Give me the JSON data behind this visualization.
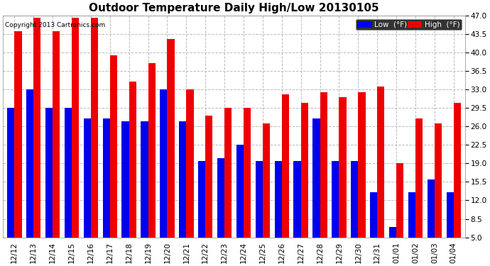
{
  "title": "Outdoor Temperature Daily High/Low 20130105",
  "copyright": "Copyright 2013 Cartronics.com",
  "legend_low": "Low  (°F)",
  "legend_high": "High  (°F)",
  "dates": [
    "12/12",
    "12/13",
    "12/14",
    "12/15",
    "12/16",
    "12/17",
    "12/18",
    "12/19",
    "12/20",
    "12/21",
    "12/22",
    "12/23",
    "12/24",
    "12/25",
    "12/26",
    "12/27",
    "12/28",
    "12/29",
    "12/30",
    "12/31",
    "01/01",
    "01/02",
    "01/03",
    "01/04"
  ],
  "low_values": [
    29.5,
    33.0,
    29.5,
    29.5,
    27.5,
    27.5,
    27.0,
    27.0,
    33.0,
    27.0,
    19.5,
    20.0,
    22.5,
    19.5,
    19.5,
    19.5,
    27.5,
    19.5,
    19.5,
    13.5,
    7.0,
    13.5,
    16.0,
    13.5
  ],
  "high_values": [
    44.0,
    46.5,
    44.0,
    46.5,
    46.5,
    39.5,
    34.5,
    38.0,
    42.5,
    33.0,
    28.0,
    29.5,
    29.5,
    26.5,
    32.0,
    30.5,
    32.5,
    31.5,
    32.5,
    33.5,
    19.0,
    27.5,
    26.5,
    30.5
  ],
  "low_color": "#0000ee",
  "high_color": "#ee0000",
  "bg_color": "#ffffff",
  "plot_bg_color": "#ffffff",
  "grid_color": "#bbbbbb",
  "ylim_min": 5.0,
  "ylim_max": 47.0,
  "yticks": [
    5.0,
    8.5,
    12.0,
    15.5,
    19.0,
    22.5,
    26.0,
    29.5,
    33.0,
    36.5,
    40.0,
    43.5,
    47.0
  ],
  "title_fontsize": 11,
  "tick_fontsize": 7.5,
  "legend_fontsize": 7.5,
  "copyright_fontsize": 6.5,
  "bar_width": 0.38
}
